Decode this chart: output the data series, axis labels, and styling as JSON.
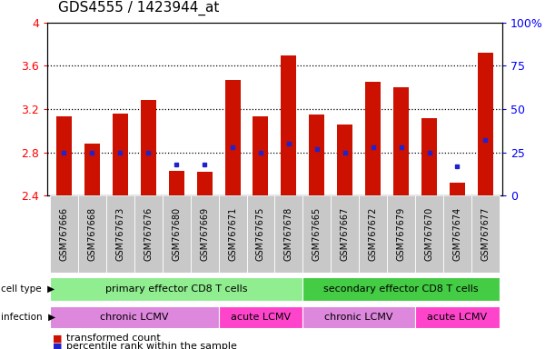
{
  "title": "GDS4555 / 1423944_at",
  "samples": [
    "GSM767666",
    "GSM767668",
    "GSM767673",
    "GSM767676",
    "GSM767680",
    "GSM767669",
    "GSM767671",
    "GSM767675",
    "GSM767678",
    "GSM767665",
    "GSM767667",
    "GSM767672",
    "GSM767679",
    "GSM767670",
    "GSM767674",
    "GSM767677"
  ],
  "transformed_count": [
    3.13,
    2.88,
    3.16,
    3.28,
    2.63,
    2.62,
    3.47,
    3.13,
    3.7,
    3.15,
    3.06,
    3.45,
    3.4,
    3.12,
    2.52,
    3.72
  ],
  "percentile_rank_pct": [
    25,
    25,
    25,
    25,
    18,
    18,
    28,
    25,
    30,
    27,
    25,
    28,
    28,
    25,
    17,
    32
  ],
  "ylim_left": [
    2.4,
    4.0
  ],
  "yticks_left": [
    2.4,
    2.8,
    3.2,
    3.6,
    4.0
  ],
  "ytick_labels_left": [
    "2.4",
    "2.8",
    "3.2",
    "3.6",
    "4"
  ],
  "ylim_right": [
    0,
    100
  ],
  "yticks_right": [
    0,
    25,
    50,
    75,
    100
  ],
  "ytick_labels_right": [
    "0",
    "25",
    "50",
    "75",
    "100%"
  ],
  "bar_color": "#CC1100",
  "dot_color": "#2222CC",
  "baseline": 2.4,
  "bar_width": 0.55,
  "grid_lines": [
    2.8,
    3.2,
    3.6
  ],
  "cell_type_groups": [
    {
      "label": "primary effector CD8 T cells",
      "start": 0,
      "end": 9,
      "color": "#90EE90"
    },
    {
      "label": "secondary effector CD8 T cells",
      "start": 9,
      "end": 16,
      "color": "#44CC44"
    }
  ],
  "infection_groups": [
    {
      "label": "chronic LCMV",
      "start": 0,
      "end": 6,
      "color": "#DD88DD"
    },
    {
      "label": "acute LCMV",
      "start": 6,
      "end": 9,
      "color": "#FF44CC"
    },
    {
      "label": "chronic LCMV",
      "start": 9,
      "end": 13,
      "color": "#DD88DD"
    },
    {
      "label": "acute LCMV",
      "start": 13,
      "end": 16,
      "color": "#FF44CC"
    }
  ],
  "sample_bg_color": "#C8C8C8",
  "legend_items": [
    {
      "color": "#CC1100",
      "label": "transformed count"
    },
    {
      "color": "#2222CC",
      "label": "percentile rank within the sample"
    }
  ],
  "row_label_cell_type": "cell type",
  "row_label_infection": "infection"
}
